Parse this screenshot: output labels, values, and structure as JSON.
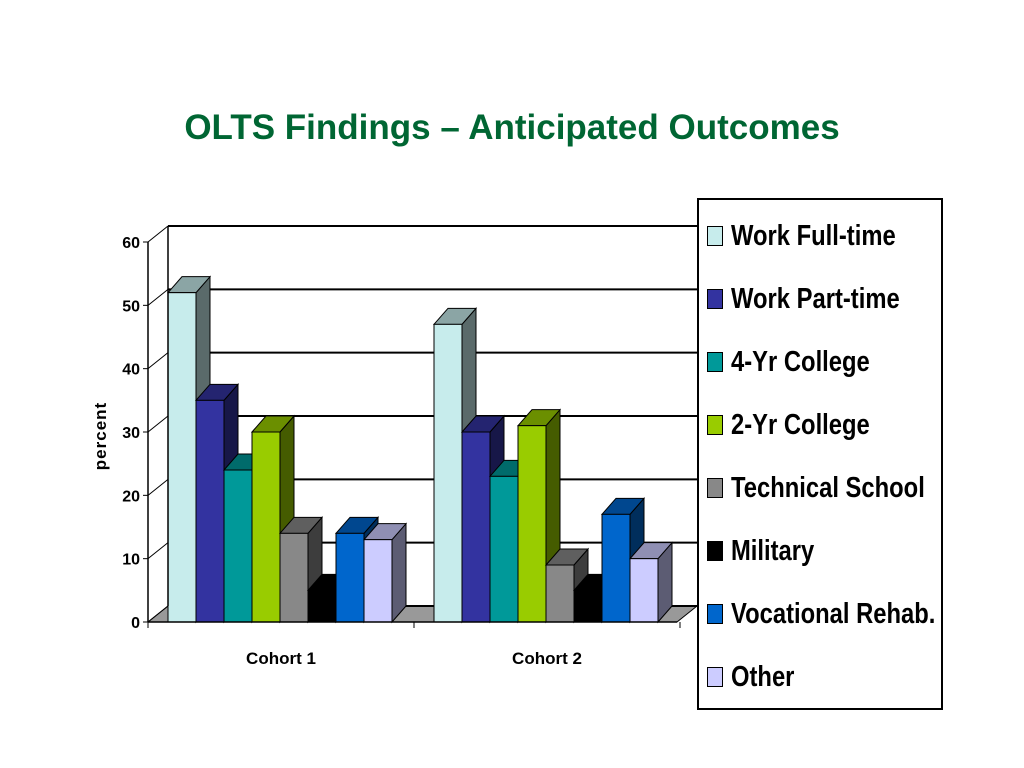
{
  "chart_data": {
    "type": "bar",
    "title": "OLTS Findings – Anticipated Outcomes",
    "ylabel": "percent",
    "xlabel": "",
    "ylim": [
      0,
      60
    ],
    "yticks": [
      "0",
      "10",
      "20",
      "30",
      "40",
      "50",
      "60"
    ],
    "categories": [
      "Cohort 1",
      "Cohort 2"
    ],
    "grid": true,
    "legend_position": "right",
    "style": "3d-clustered",
    "series": [
      {
        "name": "Work Full-time",
        "color": "#C7ECEC",
        "values": [
          52,
          47
        ]
      },
      {
        "name": "Work Part-time",
        "color": "#3333A0",
        "values": [
          35,
          30
        ]
      },
      {
        "name": "4-Yr College",
        "color": "#009999",
        "values": [
          24,
          23
        ]
      },
      {
        "name": "2-Yr College",
        "color": "#99CC00",
        "values": [
          30,
          31
        ]
      },
      {
        "name": "Technical School",
        "color": "#888888",
        "values": [
          14,
          9
        ]
      },
      {
        "name": "Military",
        "color": "#000000",
        "values": [
          5,
          5
        ]
      },
      {
        "name": "Vocational Rehab.",
        "color": "#0066CC",
        "values": [
          14,
          17
        ]
      },
      {
        "name": "Other",
        "color": "#CCCCFF",
        "values": [
          13,
          10
        ]
      }
    ]
  }
}
